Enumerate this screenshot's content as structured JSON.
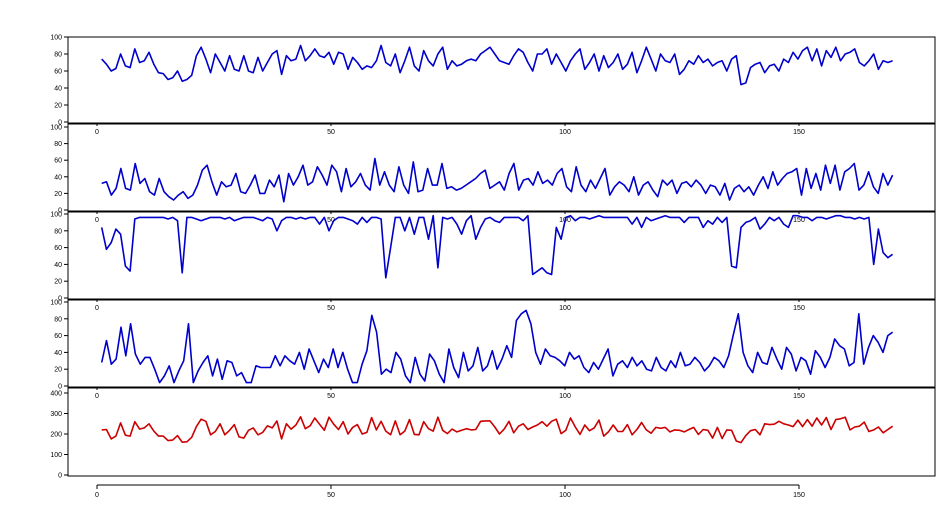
{
  "chart_data": [
    {
      "type": "line",
      "color": "#0000cc",
      "xlim": [
        0,
        170
      ],
      "ylim": [
        0,
        100
      ],
      "y_ticks": [
        0,
        20,
        40,
        60,
        80,
        100
      ],
      "x_ticks": [
        0,
        50,
        100,
        150
      ],
      "x_tick_labels": [
        "0",
        "50",
        "100",
        "150"
      ],
      "y_tick_labels": [
        "0",
        "20",
        "40",
        "60",
        "80",
        "100"
      ],
      "series": [
        {
          "values": [
            74,
            68,
            60,
            63,
            80,
            66,
            64,
            86,
            70,
            72,
            82,
            68,
            58,
            57,
            50,
            52,
            60,
            48,
            50,
            55,
            78,
            88,
            74,
            58,
            80,
            70,
            60,
            78,
            62,
            60,
            78,
            60,
            58,
            76,
            60,
            70,
            80,
            84,
            56,
            78,
            72,
            74,
            90,
            72,
            78,
            86,
            78,
            76,
            82,
            68,
            82,
            80,
            62,
            76,
            70,
            62,
            66,
            64,
            72,
            90,
            70,
            66,
            80,
            58,
            72,
            88,
            66,
            60,
            84,
            72,
            66,
            80,
            88,
            62,
            72,
            66,
            68,
            72,
            74,
            72,
            80,
            84,
            88,
            80,
            72,
            70,
            68,
            78,
            86,
            82,
            70,
            60,
            80,
            80,
            86,
            68,
            80,
            70,
            60,
            72,
            80,
            86,
            62,
            70,
            80,
            60,
            78,
            64,
            70,
            80,
            62,
            68,
            82,
            58,
            72,
            88,
            74,
            60,
            80,
            72,
            70,
            80,
            56,
            62,
            72,
            68,
            78,
            70,
            74,
            66,
            70,
            72,
            60,
            74,
            78,
            44,
            46,
            64,
            68,
            70,
            58,
            66,
            68,
            60,
            74,
            70,
            82,
            74,
            84,
            88,
            72,
            86,
            66,
            84,
            76,
            88,
            72,
            80,
            82,
            86,
            70,
            66,
            72,
            80,
            62,
            72,
            70,
            72
          ]
        }
      ]
    },
    {
      "type": "line",
      "color": "#0000cc",
      "xlim": [
        0,
        170
      ],
      "ylim": [
        0,
        100
      ],
      "y_ticks": [
        0,
        20,
        40,
        60,
        80,
        100
      ],
      "x_ticks": [
        0,
        50,
        100,
        150
      ],
      "x_tick_labels": [
        "0",
        "50",
        "100",
        "150"
      ],
      "y_tick_labels": [
        "0",
        "20",
        "40",
        "60",
        "80",
        "100"
      ],
      "series": [
        {
          "values": [
            32,
            34,
            18,
            26,
            50,
            26,
            24,
            56,
            32,
            38,
            22,
            18,
            38,
            22,
            16,
            12,
            18,
            22,
            14,
            18,
            30,
            48,
            54,
            34,
            18,
            34,
            28,
            30,
            44,
            22,
            20,
            30,
            42,
            20,
            20,
            36,
            28,
            42,
            10,
            44,
            30,
            40,
            54,
            30,
            34,
            52,
            42,
            30,
            54,
            46,
            22,
            50,
            28,
            34,
            44,
            30,
            24,
            62,
            30,
            46,
            30,
            22,
            52,
            30,
            20,
            58,
            22,
            24,
            50,
            30,
            30,
            56,
            26,
            28,
            24,
            26,
            30,
            34,
            38,
            44,
            48,
            26,
            30,
            34,
            24,
            44,
            56,
            24,
            36,
            38,
            30,
            46,
            32,
            36,
            30,
            44,
            50,
            28,
            22,
            52,
            30,
            22,
            36,
            26,
            38,
            50,
            18,
            28,
            34,
            30,
            22,
            40,
            18,
            30,
            34,
            24,
            16,
            36,
            30,
            36,
            20,
            32,
            34,
            28,
            36,
            30,
            20,
            30,
            28,
            18,
            32,
            12,
            26,
            30,
            22,
            28,
            18,
            30,
            40,
            26,
            46,
            30,
            38,
            44,
            46,
            50,
            18,
            50,
            26,
            44,
            24,
            54,
            32,
            54,
            24,
            46,
            50,
            56,
            24,
            30,
            46,
            28,
            20,
            44,
            30,
            42
          ]
        }
      ]
    },
    {
      "type": "line",
      "color": "#0000cc",
      "xlim": [
        0,
        170
      ],
      "ylim": [
        0,
        100
      ],
      "y_ticks": [
        0,
        20,
        40,
        60,
        80,
        100
      ],
      "x_ticks": [
        0,
        50,
        100,
        150
      ],
      "x_tick_labels": [
        "0",
        "50",
        "100",
        "150"
      ],
      "y_tick_labels": [
        "0",
        "20",
        "40",
        "60",
        "80",
        "100"
      ],
      "series": [
        {
          "values": [
            84,
            58,
            66,
            82,
            76,
            38,
            32,
            94,
            96,
            96,
            96,
            96,
            96,
            96,
            94,
            96,
            92,
            30,
            96,
            96,
            94,
            92,
            94,
            96,
            96,
            96,
            94,
            96,
            92,
            94,
            96,
            96,
            96,
            94,
            92,
            96,
            94,
            80,
            92,
            96,
            96,
            94,
            96,
            94,
            96,
            96,
            88,
            96,
            80,
            92,
            96,
            96,
            94,
            92,
            88,
            96,
            90,
            96,
            96,
            94,
            24,
            60,
            96,
            96,
            80,
            96,
            76,
            96,
            96,
            70,
            98,
            36,
            96,
            94,
            96,
            88,
            76,
            92,
            98,
            70,
            84,
            94,
            96,
            92,
            90,
            96,
            96,
            96,
            96,
            92,
            98,
            28,
            32,
            36,
            30,
            28,
            84,
            70,
            96,
            98,
            92,
            96,
            96,
            94,
            96,
            98,
            96,
            96,
            96,
            96,
            96,
            96,
            88,
            96,
            84,
            96,
            92,
            94,
            96,
            98,
            96,
            96,
            96,
            90,
            96,
            96,
            96,
            84,
            92,
            88,
            96,
            90,
            96,
            38,
            36,
            84,
            90,
            92,
            96,
            82,
            88,
            96,
            92,
            96,
            88,
            84,
            98,
            98,
            96,
            96,
            92,
            96,
            96,
            94,
            96,
            98,
            98,
            96,
            96,
            94,
            96,
            94,
            96,
            40,
            82,
            54,
            48,
            52
          ]
        }
      ]
    },
    {
      "type": "line",
      "color": "#0000cc",
      "xlim": [
        0,
        170
      ],
      "ylim": [
        0,
        100
      ],
      "y_ticks": [
        0,
        20,
        40,
        60,
        80,
        100
      ],
      "x_ticks": [
        0,
        50,
        100,
        150
      ],
      "x_tick_labels": [
        "0",
        "50",
        "100",
        "150"
      ],
      "y_tick_labels": [
        "0",
        "20",
        "40",
        "60",
        "80",
        "100"
      ],
      "series": [
        {
          "values": [
            28,
            54,
            26,
            32,
            70,
            36,
            74,
            38,
            26,
            34,
            34,
            20,
            4,
            12,
            24,
            4,
            18,
            30,
            74,
            4,
            18,
            28,
            36,
            12,
            32,
            8,
            30,
            28,
            12,
            16,
            4,
            4,
            24,
            22,
            22,
            22,
            36,
            24,
            36,
            30,
            26,
            40,
            20,
            44,
            30,
            16,
            32,
            22,
            44,
            22,
            40,
            20,
            4,
            4,
            26,
            42,
            84,
            64,
            14,
            20,
            16,
            40,
            32,
            12,
            4,
            34,
            14,
            6,
            38,
            30,
            14,
            4,
            44,
            22,
            10,
            40,
            18,
            24,
            46,
            18,
            24,
            42,
            20,
            32,
            48,
            34,
            78,
            86,
            90,
            74,
            40,
            26,
            44,
            36,
            34,
            30,
            24,
            40,
            32,
            36,
            22,
            16,
            28,
            20,
            32,
            44,
            12,
            26,
            30,
            22,
            34,
            24,
            30,
            20,
            18,
            34,
            22,
            18,
            30,
            22,
            40,
            24,
            26,
            34,
            28,
            18,
            24,
            34,
            30,
            22,
            36,
            62,
            86,
            40,
            24,
            16,
            40,
            28,
            26,
            46,
            32,
            20,
            46,
            38,
            18,
            34,
            30,
            14,
            42,
            34,
            22,
            34,
            56,
            48,
            44,
            24,
            28,
            86,
            26,
            46,
            60,
            52,
            40,
            60,
            64
          ]
        }
      ]
    },
    {
      "type": "line",
      "color": "#cc0000",
      "xlim": [
        0,
        170
      ],
      "ylim": [
        0,
        400
      ],
      "y_ticks": [
        0,
        100,
        200,
        300,
        400
      ],
      "x_ticks": [
        0,
        50,
        100,
        150
      ],
      "x_tick_labels": [
        "0",
        "50",
        "100",
        "150"
      ],
      "y_tick_labels": [
        "0",
        "100",
        "200",
        "300",
        "400"
      ],
      "series": [
        {
          "values": [
            220,
            222,
            176,
            190,
            254,
            194,
            190,
            260,
            224,
            230,
            250,
            214,
            190,
            190,
            168,
            170,
            192,
            160,
            162,
            184,
            236,
            272,
            262,
            196,
            212,
            250,
            196,
            218,
            246,
            186,
            180,
            218,
            230,
            196,
            208,
            240,
            230,
            264,
            176,
            250,
            224,
            244,
            284,
            226,
            240,
            278,
            248,
            218,
            282,
            248,
            222,
            260,
            200,
            232,
            246,
            200,
            208,
            280,
            220,
            262,
            214,
            196,
            264,
            196,
            214,
            270,
            198,
            196,
            260,
            226,
            214,
            282,
            218,
            202,
            224,
            210,
            218,
            226,
            220,
            222,
            262,
            264,
            264,
            234,
            200,
            224,
            262,
            206,
            238,
            250,
            222,
            234,
            244,
            260,
            238,
            262,
            272,
            202,
            218,
            278,
            234,
            198,
            244,
            216,
            230,
            268,
            190,
            210,
            244,
            212,
            212,
            246,
            196,
            222,
            256,
            220,
            204,
            232,
            228,
            232,
            210,
            220,
            218,
            210,
            222,
            232,
            198,
            222,
            218,
            180,
            232,
            178,
            220,
            218,
            166,
            158,
            192,
            216,
            222,
            196,
            250,
            246,
            248,
            262,
            250,
            244,
            236,
            268,
            236,
            270,
            238,
            278,
            244,
            280,
            222,
            270,
            274,
            282,
            220,
            234,
            238,
            258,
            212,
            220,
            234,
            206,
            222,
            238
          ]
        }
      ]
    }
  ]
}
